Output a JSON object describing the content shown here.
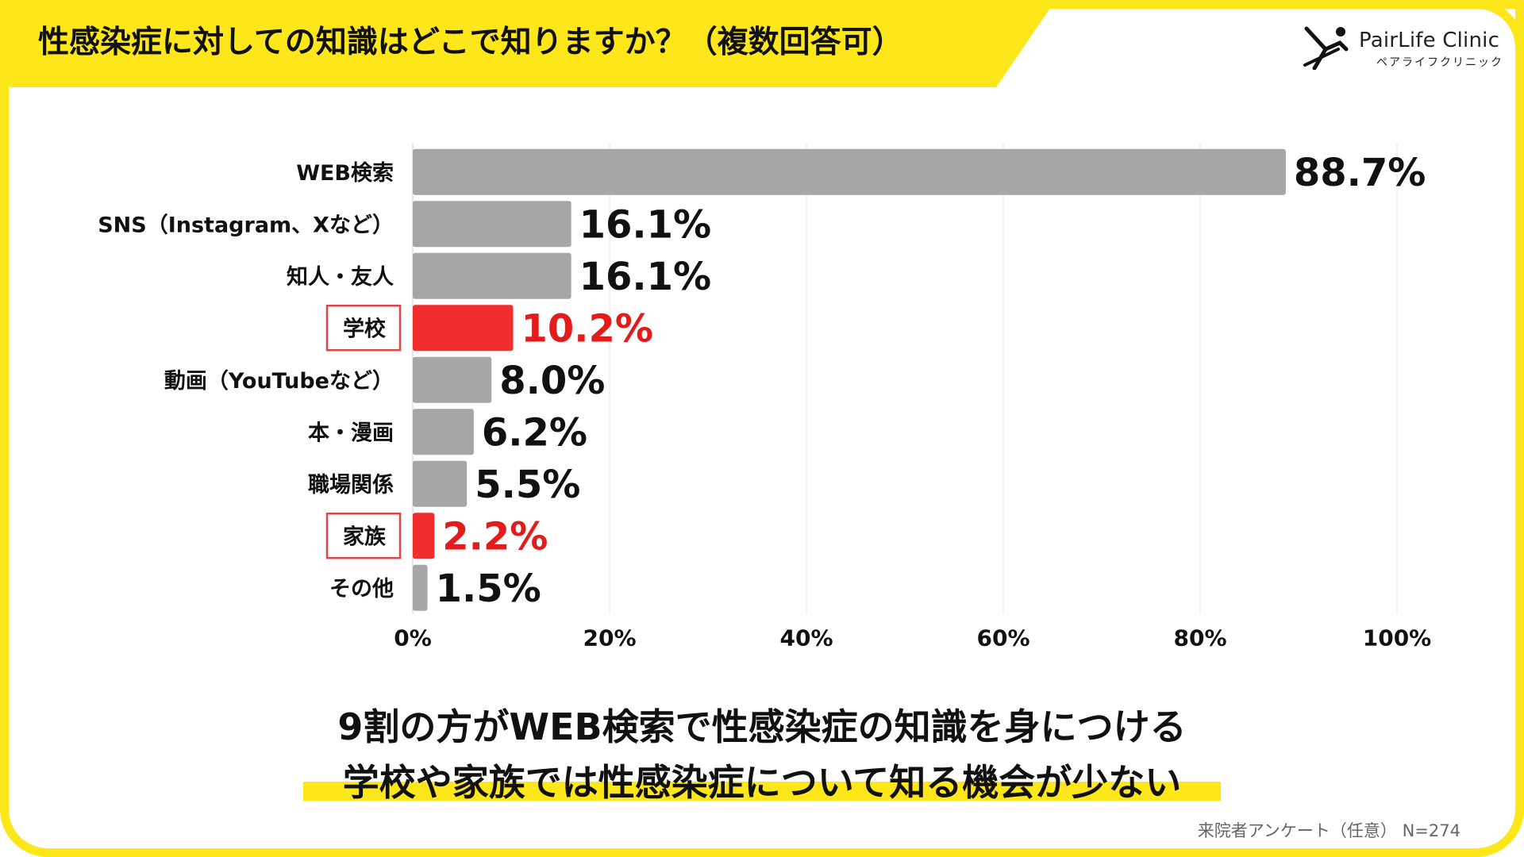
{
  "header": {
    "title": "性感染症に対しての知識はどこで知りますか？（複数回答可）",
    "brand_name": "PairLife Clinic",
    "brand_kana": "ペアライフクリニック",
    "brand_icon": "person-leaping-icon"
  },
  "colors": {
    "accent_yellow": "#fde61a",
    "bar_default": "#a6a6a6",
    "bar_highlight": "#f12d2d",
    "value_highlight": "#e31b1b",
    "box_border": "#d9474a"
  },
  "chart_data": {
    "type": "bar",
    "orientation": "horizontal",
    "categories": [
      "WEB検索",
      "SNS（Instagram、Xなど）",
      "知人・友人",
      "学校",
      "動画（YouTubeなど）",
      "本・漫画",
      "職場関係",
      "家族",
      "その他"
    ],
    "values": [
      88.7,
      16.1,
      16.1,
      10.2,
      8.0,
      6.2,
      5.5,
      2.2,
      1.5
    ],
    "value_labels": [
      "88.7%",
      "16.1%",
      "16.1%",
      "10.2%",
      "8.0%",
      "6.2%",
      "5.5%",
      "2.2%",
      "1.5%"
    ],
    "highlighted": [
      false,
      false,
      false,
      true,
      false,
      false,
      false,
      true,
      false
    ],
    "xlim": [
      0,
      100
    ],
    "xticks": [
      "0%",
      "20%",
      "40%",
      "60%",
      "80%",
      "100%"
    ],
    "grid": "vertical"
  },
  "conclusion": {
    "line1": "9割の方がWEB検索で性感染症の知識を身につける",
    "line2": "学校や家族では性感染症について知る機会が少ない"
  },
  "footnote": "来院者アンケート（任意） N=274"
}
